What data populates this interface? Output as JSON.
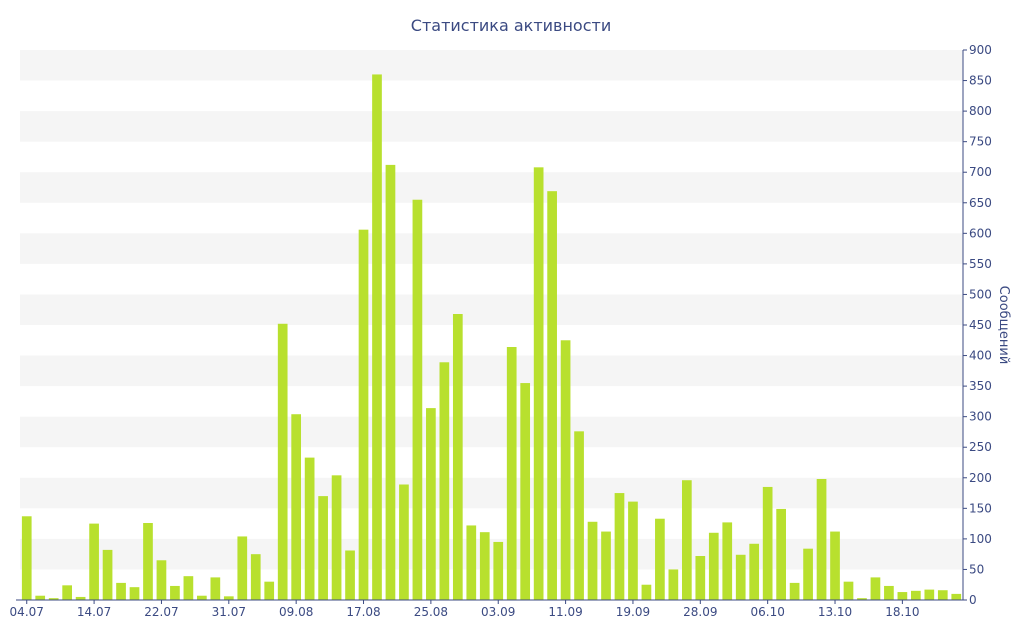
{
  "chart_data": {
    "type": "bar",
    "title": "Статистика активности",
    "xlabel": "",
    "ylabel": "Сообщений",
    "ylim": [
      0,
      900
    ],
    "y_ticks": [
      0,
      50,
      100,
      150,
      200,
      250,
      300,
      350,
      400,
      450,
      500,
      550,
      600,
      650,
      700,
      750,
      800,
      850,
      900
    ],
    "y_axis_side": "right",
    "grid": "horizontal alternating bands",
    "x_ticks": [
      {
        "label": "04.07",
        "index": 0
      },
      {
        "label": "14.07",
        "index": 5
      },
      {
        "label": "22.07",
        "index": 10
      },
      {
        "label": "31.07",
        "index": 15
      },
      {
        "label": "09.08",
        "index": 20
      },
      {
        "label": "17.08",
        "index": 25
      },
      {
        "label": "25.08",
        "index": 30
      },
      {
        "label": "03.09",
        "index": 35
      },
      {
        "label": "11.09",
        "index": 40
      },
      {
        "label": "19.09",
        "index": 45
      },
      {
        "label": "28.09",
        "index": 50
      },
      {
        "label": "06.10",
        "index": 55
      },
      {
        "label": "13.10",
        "index": 60
      },
      {
        "label": "18.10",
        "index": 65
      }
    ],
    "values": [
      137,
      7,
      3,
      24,
      5,
      125,
      82,
      28,
      21,
      126,
      65,
      23,
      39,
      7,
      37,
      6,
      104,
      75,
      30,
      452,
      304,
      233,
      170,
      204,
      81,
      606,
      860,
      712,
      189,
      655,
      314,
      389,
      468,
      122,
      111,
      95,
      414,
      355,
      708,
      669,
      425,
      276,
      128,
      112,
      175,
      161,
      25,
      133,
      50,
      196,
      72,
      110,
      127,
      74,
      92,
      185,
      149,
      28,
      84,
      198,
      112,
      30,
      3,
      37,
      23,
      13,
      15,
      17,
      16,
      10
    ],
    "colors": {
      "bar": "#b8e02e",
      "text": "#3b4a82",
      "band": "#f5f5f5",
      "axis": "#3b4a82"
    }
  }
}
